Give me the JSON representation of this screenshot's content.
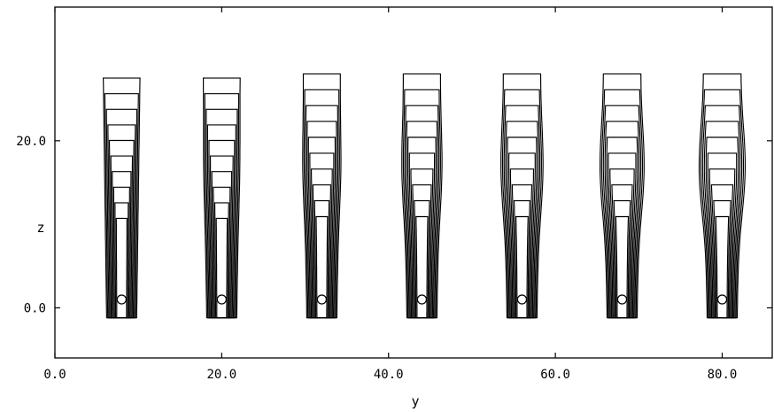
{
  "chart_data": {
    "type": "contour",
    "title": "",
    "xlabel": "y",
    "ylabel": "z",
    "xlim": [
      0,
      86
    ],
    "ylim": [
      -6,
      36
    ],
    "grid": false,
    "x_ticks": [
      {
        "value": 0,
        "label": "0.0"
      },
      {
        "value": 20,
        "label": "20.0"
      },
      {
        "value": 40,
        "label": "40.0"
      },
      {
        "value": 60,
        "label": "60.0"
      },
      {
        "value": 80,
        "label": "80.0"
      }
    ],
    "y_ticks": [
      {
        "value": 0,
        "label": "0.0"
      },
      {
        "value": 20,
        "label": "20.0"
      }
    ],
    "plumes": [
      {
        "center_y": 8,
        "top_z": 27.5,
        "max_z": 1,
        "dip_z": 10
      },
      {
        "center_y": 20,
        "top_z": 27.5,
        "max_z": 1,
        "dip_z": 10
      },
      {
        "center_y": 32,
        "top_z": 28.0,
        "max_z": 1,
        "dip_z": 9
      },
      {
        "center_y": 44,
        "top_z": 28.0,
        "max_z": 1,
        "dip_z": 6
      },
      {
        "center_y": 56,
        "top_z": 28.0,
        "max_z": 1,
        "dip_z": 8
      },
      {
        "center_y": 68,
        "top_z": 28.0,
        "max_z": 1,
        "dip_z": 14
      },
      {
        "center_y": 80,
        "top_z": 28.0,
        "max_z": 1,
        "dip_z": 15
      }
    ]
  }
}
